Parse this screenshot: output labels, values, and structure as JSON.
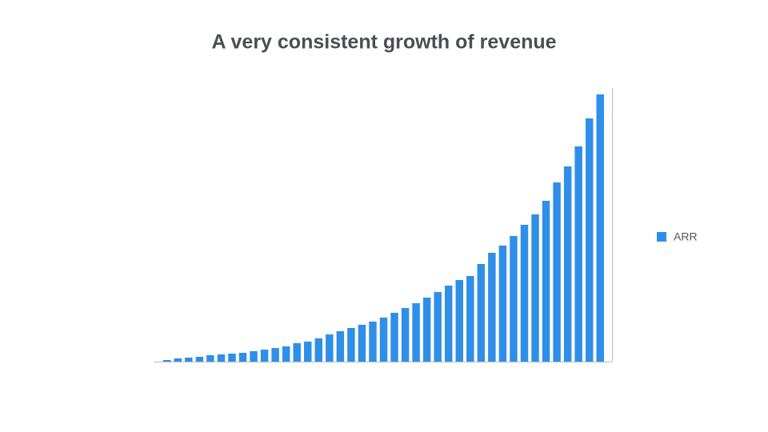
{
  "chart_data": {
    "type": "bar",
    "title": "A very consistent growth of revenue",
    "categories": [
      null,
      null,
      null,
      null,
      null,
      null,
      null,
      null,
      null,
      null,
      null,
      null,
      null,
      null,
      null,
      null,
      null,
      null,
      null,
      null,
      null,
      null,
      null,
      null,
      null,
      null,
      null,
      null,
      null,
      null,
      null,
      null,
      null,
      null,
      null,
      null,
      null,
      null,
      null,
      null,
      null
    ],
    "series": [
      {
        "name": "ARR",
        "color": "#2f8fe8",
        "values": [
          2,
          4,
          5,
          6,
          8,
          9,
          10,
          11,
          13,
          15,
          17,
          19,
          23,
          25,
          29,
          34,
          38,
          42,
          46,
          50,
          55,
          61,
          67,
          73,
          80,
          87,
          95,
          102,
          107,
          122,
          136,
          145,
          157,
          171,
          184,
          201,
          224,
          244,
          269,
          304,
          334
        ]
      }
    ],
    "ylim": [
      0,
      340
    ],
    "legend": "right"
  }
}
